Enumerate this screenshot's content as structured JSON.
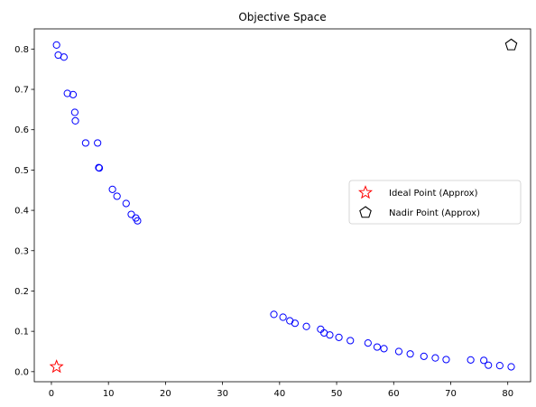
{
  "chart_data": {
    "type": "scatter",
    "title": "Objective Space",
    "xlabel": "",
    "ylabel": "",
    "xlim": [
      -3.0,
      84.0
    ],
    "ylim": [
      -0.025,
      0.85
    ],
    "xticks": [
      0,
      10,
      20,
      30,
      40,
      50,
      60,
      70,
      80
    ],
    "yticks": [
      0.0,
      0.1,
      0.2,
      0.3,
      0.4,
      0.5,
      0.6,
      0.7,
      0.8
    ],
    "xtick_labels": [
      "0",
      "10",
      "20",
      "30",
      "40",
      "50",
      "60",
      "70",
      "80"
    ],
    "ytick_labels": [
      "0.0",
      "0.1",
      "0.2",
      "0.3",
      "0.4",
      "0.5",
      "0.6",
      "0.7",
      "0.8"
    ],
    "grid": false,
    "legend_position": "center-right",
    "series": [
      {
        "marker": "circle-open",
        "color": "#0000ff",
        "points": [
          [
            0.9,
            0.81
          ],
          [
            1.2,
            0.785
          ],
          [
            2.2,
            0.78
          ],
          [
            2.8,
            0.69
          ],
          [
            3.8,
            0.687
          ],
          [
            4.1,
            0.643
          ],
          [
            4.2,
            0.622
          ],
          [
            6.0,
            0.567
          ],
          [
            8.1,
            0.567
          ],
          [
            8.3,
            0.506
          ],
          [
            8.4,
            0.505
          ],
          [
            10.7,
            0.452
          ],
          [
            11.5,
            0.435
          ],
          [
            13.1,
            0.417
          ],
          [
            14.0,
            0.39
          ],
          [
            14.8,
            0.381
          ],
          [
            15.1,
            0.374
          ],
          [
            39.0,
            0.142
          ],
          [
            40.6,
            0.135
          ],
          [
            41.8,
            0.126
          ],
          [
            42.7,
            0.12
          ],
          [
            44.7,
            0.112
          ],
          [
            47.2,
            0.105
          ],
          [
            47.8,
            0.096
          ],
          [
            48.8,
            0.091
          ],
          [
            50.4,
            0.085
          ],
          [
            52.4,
            0.077
          ],
          [
            55.5,
            0.071
          ],
          [
            57.1,
            0.061
          ],
          [
            58.3,
            0.057
          ],
          [
            60.9,
            0.05
          ],
          [
            62.9,
            0.044
          ],
          [
            65.3,
            0.038
          ],
          [
            67.3,
            0.034
          ],
          [
            69.2,
            0.03
          ],
          [
            73.5,
            0.029
          ],
          [
            75.8,
            0.028
          ],
          [
            76.6,
            0.016
          ],
          [
            78.6,
            0.015
          ],
          [
            80.6,
            0.012
          ]
        ]
      },
      {
        "name": "Ideal Point (Approx)",
        "marker": "star-open",
        "color": "#ff0000",
        "points": [
          [
            0.9,
            0.012
          ]
        ]
      },
      {
        "name": "Nadir Point (Approx)",
        "marker": "pentagon-open",
        "color": "#000000",
        "points": [
          [
            80.6,
            0.81
          ]
        ]
      }
    ]
  }
}
